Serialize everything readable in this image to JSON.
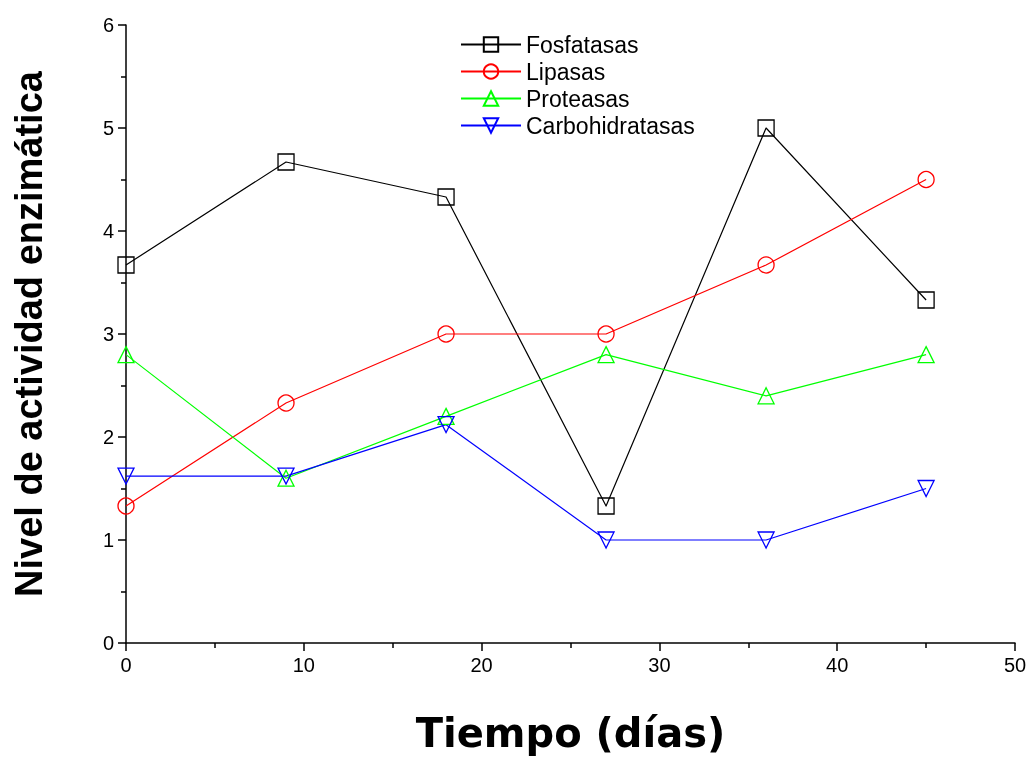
{
  "chart_data": {
    "type": "line",
    "xlabel": "Tiempo (días)",
    "ylabel": "Nivel de actividad enzimática",
    "x": [
      0,
      9,
      18,
      27,
      36,
      45
    ],
    "series": [
      {
        "name": "Fosfatasas",
        "color": "#000000",
        "marker": "square",
        "values": [
          3.67,
          4.67,
          4.33,
          1.33,
          5.0,
          3.33
        ]
      },
      {
        "name": "Lipasas",
        "color": "#ff0000",
        "marker": "circle",
        "values": [
          1.33,
          2.33,
          3.0,
          3.0,
          3.67,
          4.5
        ]
      },
      {
        "name": "Proteasas",
        "color": "#00ff00",
        "marker": "triangle",
        "values": [
          2.8,
          1.6,
          2.2,
          2.8,
          2.4,
          2.8
        ]
      },
      {
        "name": "Carbohidratasas",
        "color": "#0000ff",
        "marker": "triangle-down",
        "values": [
          1.62,
          1.62,
          2.12,
          1.0,
          1.0,
          1.5
        ]
      }
    ],
    "xlim": [
      0,
      50
    ],
    "xticks": [
      0,
      10,
      20,
      30,
      40,
      50
    ],
    "ylim": [
      0,
      6
    ],
    "yticks": [
      0,
      1,
      2,
      3,
      4,
      5,
      6
    ],
    "grid": false,
    "legend": "top",
    "line_style": "solid"
  }
}
